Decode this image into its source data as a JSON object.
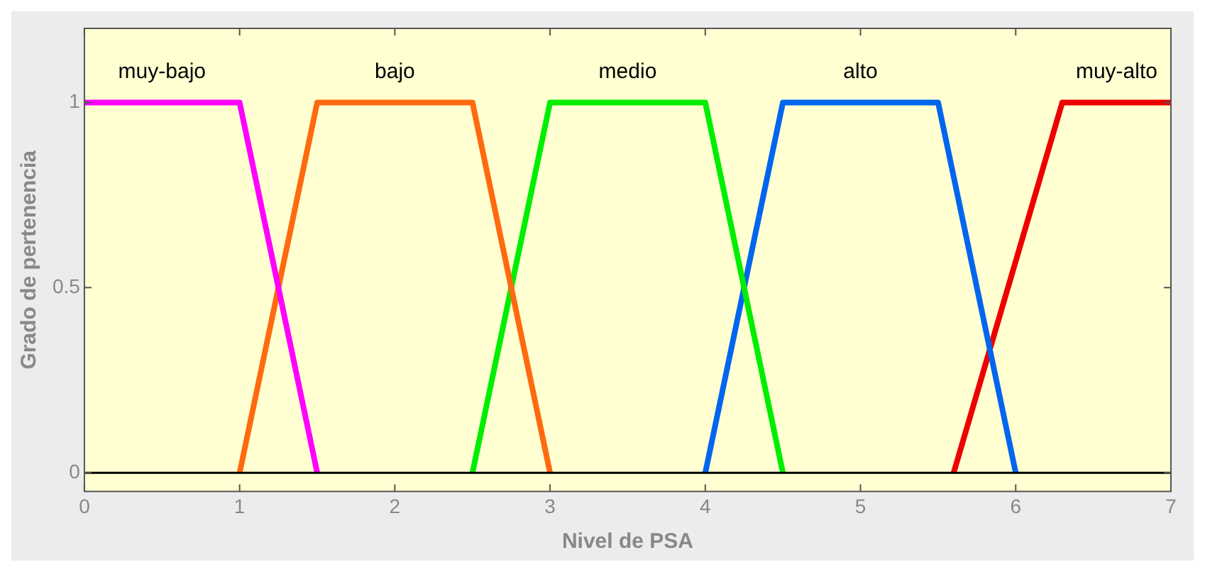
{
  "chart_data": {
    "type": "line",
    "xlabel": "Nivel de PSA",
    "ylabel": "Grado de pertenencia",
    "xlim": [
      0,
      7
    ],
    "xticks": [
      0,
      1,
      2,
      3,
      4,
      5,
      6,
      7
    ],
    "ylim": [
      -0.05,
      1.2
    ],
    "yticks": [
      0,
      0.5,
      1
    ],
    "grid": false,
    "legend": false,
    "marker": "none",
    "line_style": "solid",
    "ref_lines": [
      {
        "axis": "y",
        "value": 0,
        "color": "#000000"
      }
    ],
    "series": [
      {
        "name": "muy-bajo",
        "color": "#ff00ff",
        "x": [
          0,
          1,
          1.5
        ],
        "values": [
          1,
          1,
          0
        ]
      },
      {
        "name": "bajo",
        "color": "#ff6a10",
        "x": [
          1,
          1.5,
          2.5,
          3
        ],
        "values": [
          0,
          1,
          1,
          0
        ]
      },
      {
        "name": "medio",
        "color": "#00ee00",
        "x": [
          2.5,
          3,
          4,
          4.5
        ],
        "values": [
          0,
          1,
          1,
          0
        ]
      },
      {
        "name": "alto",
        "color": "#0066ee",
        "x": [
          4,
          4.5,
          5.5,
          6
        ],
        "values": [
          0,
          1,
          1,
          0
        ]
      },
      {
        "name": "muy-alto",
        "color": "#ee0000",
        "x": [
          5.6,
          6.3,
          7
        ],
        "values": [
          0,
          1,
          1
        ]
      }
    ]
  }
}
